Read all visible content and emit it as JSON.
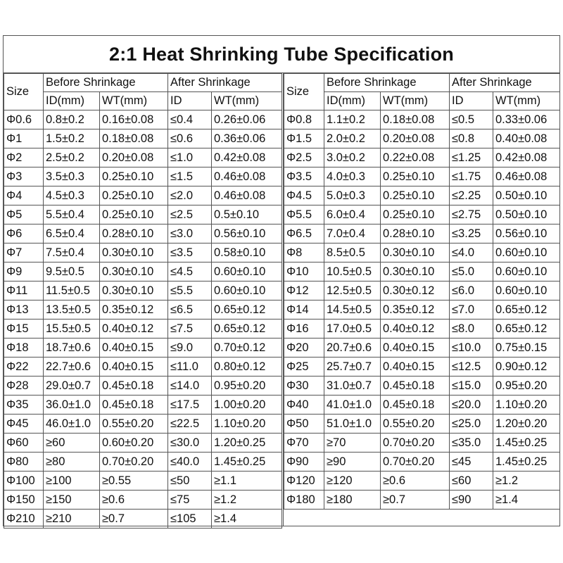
{
  "title": "2:1 Heat Shrinking Tube Specification",
  "headers": {
    "size": "Size",
    "before": "Before Shrinkage",
    "after": "After Shrinkage",
    "before_id": "ID(mm)",
    "before_wt": "WT(mm)",
    "after_id": "ID",
    "after_wt": "WT(mm)"
  },
  "left_rows": [
    [
      "Φ0.6",
      "0.8±0.2",
      "0.16±0.08",
      "≤0.4",
      "0.26±0.06"
    ],
    [
      "Φ1",
      "1.5±0.2",
      "0.18±0.08",
      "≤0.6",
      "0.36±0.06"
    ],
    [
      "Φ2",
      "2.5±0.2",
      "0.20±0.08",
      "≤1.0",
      "0.42±0.08"
    ],
    [
      "Φ3",
      "3.5±0.3",
      "0.25±0.10",
      "≤1.5",
      "0.46±0.08"
    ],
    [
      "Φ4",
      "4.5±0.3",
      "0.25±0.10",
      "≤2.0",
      "0.46±0.08"
    ],
    [
      "Φ5",
      "5.5±0.4",
      "0.25±0.10",
      "≤2.5",
      "0.5±0.10"
    ],
    [
      "Φ6",
      "6.5±0.4",
      "0.28±0.10",
      "≤3.0",
      "0.56±0.10"
    ],
    [
      "Φ7",
      "7.5±0.4",
      "0.30±0.10",
      "≤3.5",
      "0.58±0.10"
    ],
    [
      "Φ9",
      "9.5±0.5",
      "0.30±0.10",
      "≤4.5",
      "0.60±0.10"
    ],
    [
      "Φ11",
      "11.5±0.5",
      "0.30±0.10",
      "≤5.5",
      "0.60±0.10"
    ],
    [
      "Φ13",
      "13.5±0.5",
      "0.35±0.12",
      "≤6.5",
      "0.65±0.12"
    ],
    [
      "Φ15",
      "15.5±0.5",
      "0.40±0.12",
      "≤7.5",
      "0.65±0.12"
    ],
    [
      "Φ18",
      "18.7±0.6",
      "0.40±0.15",
      "≤9.0",
      "0.70±0.12"
    ],
    [
      "Φ22",
      "22.7±0.6",
      "0.40±0.15",
      "≤11.0",
      "0.80±0.12"
    ],
    [
      "Φ28",
      "29.0±0.7",
      "0.45±0.18",
      "≤14.0",
      "0.95±0.20"
    ],
    [
      "Φ35",
      "36.0±1.0",
      "0.45±0.18",
      "≤17.5",
      "1.00±0.20"
    ],
    [
      "Φ45",
      "46.0±1.0",
      "0.55±0.20",
      "≤22.5",
      "1.10±0.20"
    ],
    [
      "Φ60",
      "≥60",
      "0.60±0.20",
      "≤30.0",
      "1.20±0.25"
    ],
    [
      "Φ80",
      "≥80",
      "0.70±0.20",
      "≤40.0",
      "1.45±0.25"
    ],
    [
      "Φ100",
      "≥100",
      "≥0.55",
      "≤50",
      "≥1.1"
    ],
    [
      "Φ150",
      "≥150",
      "≥0.6",
      "≤75",
      "≥1.2"
    ],
    [
      "Φ210",
      "≥210",
      "≥0.7",
      "≤105",
      "≥1.4"
    ]
  ],
  "right_rows": [
    [
      "Φ0.8",
      "1.1±0.2",
      "0.18±0.08",
      "≤0.5",
      "0.33±0.06"
    ],
    [
      "Φ1.5",
      "2.0±0.2",
      "0.20±0.08",
      "≤0.8",
      "0.40±0.08"
    ],
    [
      "Φ2.5",
      "3.0±0.2",
      "0.22±0.08",
      "≤1.25",
      "0.42±0.08"
    ],
    [
      "Φ3.5",
      "4.0±0.3",
      "0.25±0.10",
      "≤1.75",
      "0.46±0.08"
    ],
    [
      "Φ4.5",
      "5.0±0.3",
      "0.25±0.10",
      "≤2.25",
      "0.50±0.10"
    ],
    [
      "Φ5.5",
      "6.0±0.4",
      "0.25±0.10",
      "≤2.75",
      "0.50±0.10"
    ],
    [
      "Φ6.5",
      "7.0±0.4",
      "0.28±0.10",
      "≤3.25",
      "0.56±0.10"
    ],
    [
      "Φ8",
      "8.5±0.5",
      "0.30±0.10",
      "≤4.0",
      "0.60±0.10"
    ],
    [
      "Φ10",
      "10.5±0.5",
      "0.30±0.10",
      "≤5.0",
      "0.60±0.10"
    ],
    [
      "Φ12",
      "12.5±0.5",
      "0.30±0.12",
      "≤6.0",
      "0.60±0.10"
    ],
    [
      "Φ14",
      "14.5±0.5",
      "0.35±0.12",
      "≤7.0",
      "0.65±0.12"
    ],
    [
      "Φ16",
      "17.0±0.5",
      "0.40±0.12",
      "≤8.0",
      "0.65±0.12"
    ],
    [
      "Φ20",
      "20.7±0.6",
      "0.40±0.15",
      "≤10.0",
      "0.75±0.15"
    ],
    [
      "Φ25",
      "25.7±0.7",
      "0.40±0.15",
      "≤12.5",
      "0.90±0.12"
    ],
    [
      "Φ30",
      "31.0±0.7",
      "0.45±0.18",
      "≤15.0",
      "0.95±0.20"
    ],
    [
      "Φ40",
      "41.0±1.0",
      "0.45±0.18",
      "≤20.0",
      "1.10±0.20"
    ],
    [
      "Φ50",
      "51.0±1.0",
      "0.55±0.20",
      "≤25.0",
      "1.20±0.20"
    ],
    [
      "Φ70",
      "≥70",
      "0.70±0.20",
      "≤35.0",
      "1.45±0.25"
    ],
    [
      "Φ90",
      "≥90",
      "0.70±0.20",
      "≤45",
      "1.45±0.25"
    ],
    [
      "Φ120",
      "≥120",
      "≥0.6",
      "≤60",
      "≥1.2"
    ],
    [
      "Φ180",
      "≥180",
      "≥0.7",
      "≤90",
      "≥1.4"
    ]
  ]
}
